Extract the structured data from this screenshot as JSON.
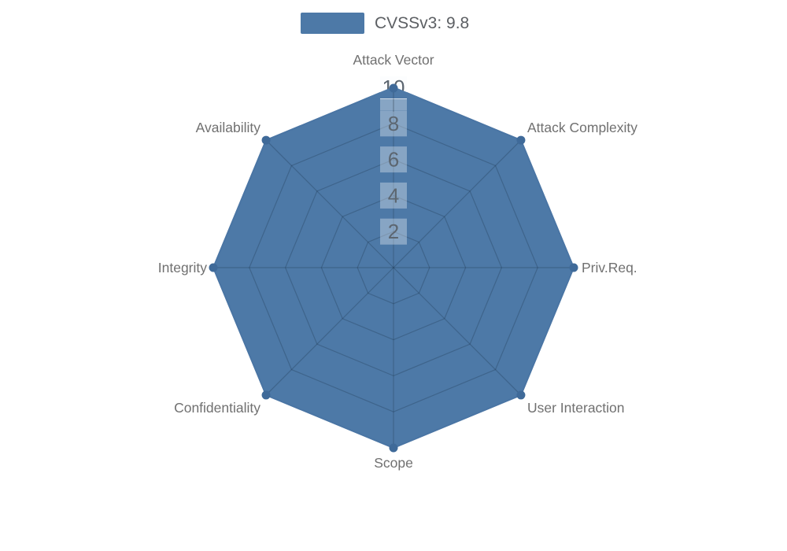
{
  "legend": {
    "items": [
      {
        "label": "CVSSv3: 9.8",
        "color": "#4d79a7"
      }
    ]
  },
  "chart_data": {
    "type": "radar",
    "title": "CVSSv3: 9.8",
    "categories": [
      "Attack Vector",
      "Attack Complexity",
      "Priv.Req.",
      "User Interaction",
      "Scope",
      "Confidentiality",
      "Integrity",
      "Availability"
    ],
    "series": [
      {
        "name": "CVSSv3: 9.8",
        "values": [
          10,
          10,
          10,
          10,
          10,
          10,
          10,
          10
        ],
        "color": "#4d79a7"
      }
    ],
    "scale": {
      "min": 0,
      "max": 10,
      "ticks": [
        2,
        4,
        6,
        8,
        10
      ]
    },
    "layout": {
      "legend_position": "top",
      "grid_shape": "polygon",
      "rings": 5,
      "axes": 8
    }
  },
  "colors": {
    "background": "#ffffff",
    "series_fill": "#4d79a7",
    "series_line": "#4a75a4",
    "marker": "#3f6a99",
    "grid_line": "rgba(25,45,70,0.28)",
    "tick_text": "#5c6670",
    "tick_box": "rgba(255,255,255,0.33)",
    "tick_box_top": "#fcfdfe",
    "axis_label": "#707070"
  }
}
